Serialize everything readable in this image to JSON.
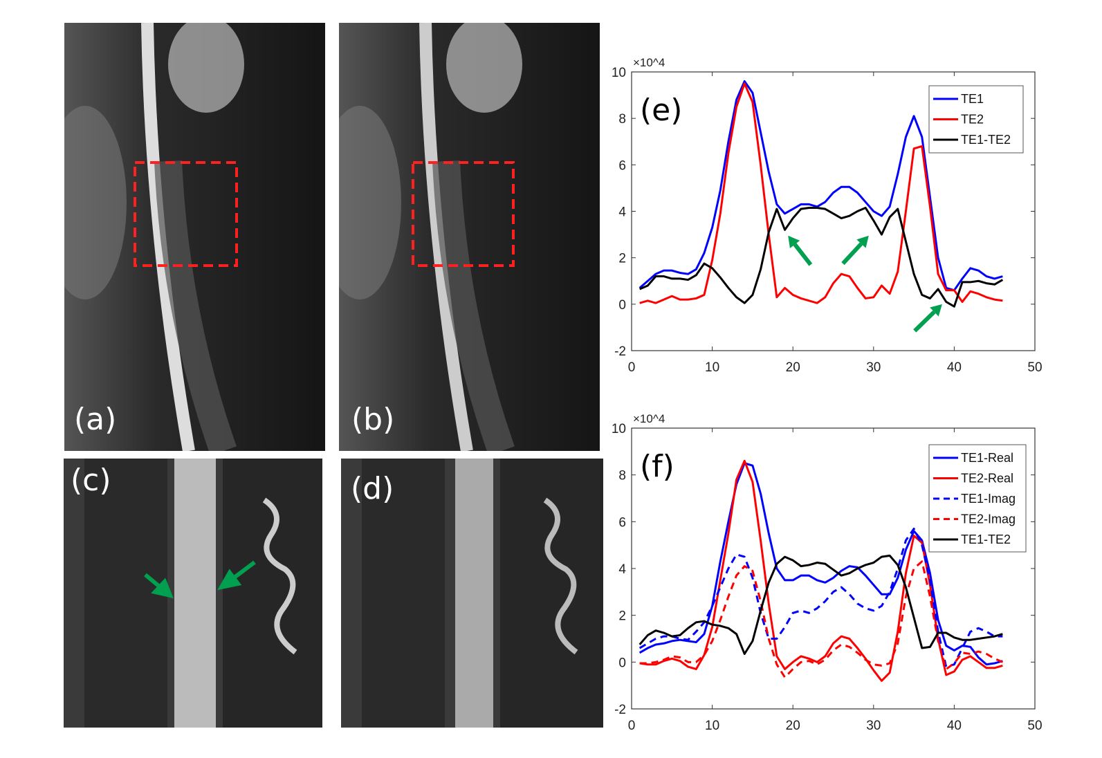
{
  "panels": {
    "a": {
      "label": "(a)"
    },
    "b": {
      "label": "(b)"
    },
    "c": {
      "label": "(c)"
    },
    "d": {
      "label": "(d)"
    }
  },
  "colors": {
    "te1": "#0000ff",
    "te2": "#ff0000",
    "diff": "#000000",
    "arrow": "#00a050",
    "roi_box": "#ff2020"
  },
  "chart_data": [
    {
      "panel_label": "(e)",
      "type": "line",
      "exponent_label": "×10^4",
      "xlim": [
        0,
        50
      ],
      "ylim": [
        -2,
        10
      ],
      "xticks": [
        0,
        10,
        20,
        30,
        40,
        50
      ],
      "yticks": [
        -2,
        0,
        2,
        4,
        6,
        8,
        10
      ],
      "y_scale_factor": 10000,
      "legend_position": "top-right",
      "x": [
        1,
        2,
        3,
        4,
        5,
        6,
        7,
        8,
        9,
        10,
        11,
        12,
        13,
        14,
        15,
        16,
        17,
        18,
        19,
        20,
        21,
        22,
        23,
        24,
        25,
        26,
        27,
        28,
        29,
        30,
        31,
        32,
        33,
        34,
        35,
        36,
        37,
        38,
        39,
        40,
        41,
        42,
        43,
        44,
        45,
        46
      ],
      "series": [
        {
          "name": "TE1",
          "color": "#0000ff",
          "dash": false,
          "values": [
            0.7,
            1.0,
            1.3,
            1.45,
            1.45,
            1.35,
            1.3,
            1.5,
            2.2,
            3.3,
            4.9,
            7.0,
            8.8,
            9.6,
            9.1,
            7.4,
            5.7,
            4.3,
            3.9,
            4.1,
            4.3,
            4.3,
            4.2,
            4.4,
            4.8,
            5.05,
            5.05,
            4.8,
            4.4,
            4.0,
            3.8,
            4.2,
            5.6,
            7.2,
            8.1,
            7.2,
            4.6,
            2.0,
            0.7,
            0.6,
            1.1,
            1.55,
            1.45,
            1.2,
            1.1,
            1.2
          ]
        },
        {
          "name": "TE2",
          "color": "#ff0000",
          "dash": false,
          "values": [
            0.05,
            0.15,
            0.05,
            0.2,
            0.35,
            0.2,
            0.2,
            0.25,
            0.4,
            1.9,
            3.9,
            6.5,
            8.5,
            9.5,
            8.7,
            6.0,
            3.0,
            0.3,
            0.7,
            0.4,
            0.25,
            0.15,
            0.05,
            0.3,
            0.9,
            1.3,
            1.2,
            0.7,
            0.25,
            0.3,
            0.8,
            0.45,
            1.4,
            4.0,
            6.7,
            6.8,
            4.2,
            1.3,
            0.6,
            0.6,
            0.1,
            0.55,
            0.45,
            0.3,
            0.2,
            0.15
          ]
        },
        {
          "name": "TE1-TE2",
          "color": "#000000",
          "dash": false,
          "values": [
            0.65,
            0.8,
            1.2,
            1.2,
            1.1,
            1.1,
            1.05,
            1.25,
            1.75,
            1.55,
            1.15,
            0.7,
            0.3,
            0.05,
            0.4,
            1.5,
            3.1,
            4.1,
            3.2,
            3.7,
            4.1,
            4.15,
            4.15,
            4.1,
            3.9,
            3.7,
            3.8,
            4.0,
            4.15,
            3.6,
            3.0,
            3.75,
            4.1,
            2.7,
            1.3,
            0.4,
            0.25,
            0.65,
            0.1,
            -0.1,
            0.95,
            0.95,
            1.0,
            0.9,
            0.85,
            1.05
          ]
        }
      ],
      "annotations": [
        {
          "type": "arrow",
          "from": [
            22.2,
            1.7
          ],
          "to": [
            19.4,
            2.95
          ]
        },
        {
          "type": "arrow",
          "from": [
            26.2,
            1.75
          ],
          "to": [
            29.4,
            2.95
          ]
        },
        {
          "type": "arrow",
          "from": [
            35.1,
            -1.15
          ],
          "to": [
            38.5,
            0.0
          ]
        }
      ]
    },
    {
      "panel_label": "(f)",
      "type": "line",
      "exponent_label": "×10^4",
      "xlim": [
        0,
        50
      ],
      "ylim": [
        -2,
        10
      ],
      "xticks": [
        0,
        10,
        20,
        30,
        40,
        50
      ],
      "yticks": [
        -2,
        0,
        2,
        4,
        6,
        8,
        10
      ],
      "y_scale_factor": 10000,
      "legend_position": "top-right",
      "x": [
        1,
        2,
        3,
        4,
        5,
        6,
        7,
        8,
        9,
        10,
        11,
        12,
        13,
        14,
        15,
        16,
        17,
        18,
        19,
        20,
        21,
        22,
        23,
        24,
        25,
        26,
        27,
        28,
        29,
        30,
        31,
        32,
        33,
        34,
        35,
        36,
        37,
        38,
        39,
        40,
        41,
        42,
        43,
        44,
        45,
        46
      ],
      "series": [
        {
          "name": "TE1-Real",
          "color": "#0000ff",
          "dash": false,
          "values": [
            0.4,
            0.6,
            0.75,
            0.8,
            0.9,
            0.95,
            0.9,
            0.85,
            1.2,
            2.4,
            4.3,
            6.0,
            7.6,
            8.5,
            8.4,
            7.2,
            5.5,
            4.0,
            3.5,
            3.5,
            3.7,
            3.7,
            3.5,
            3.4,
            3.6,
            3.9,
            4.1,
            4.05,
            3.7,
            3.3,
            2.9,
            2.9,
            3.6,
            4.8,
            5.6,
            5.2,
            3.8,
            1.8,
            0.7,
            0.5,
            0.7,
            0.65,
            0.2,
            -0.1,
            -0.05,
            0.05
          ]
        },
        {
          "name": "TE2-Real",
          "color": "#ff0000",
          "dash": false,
          "values": [
            -0.05,
            -0.1,
            -0.1,
            0.05,
            0.15,
            0.05,
            -0.2,
            -0.3,
            0.3,
            1.5,
            3.5,
            5.5,
            7.8,
            8.6,
            7.7,
            5.2,
            2.5,
            0.25,
            -0.3,
            0.0,
            0.25,
            0.15,
            0.0,
            0.25,
            0.8,
            1.1,
            1.0,
            0.6,
            0.15,
            -0.35,
            -0.8,
            -0.45,
            1.3,
            3.8,
            5.4,
            5.1,
            3.3,
            1.0,
            -0.55,
            -0.4,
            0.1,
            0.25,
            0.0,
            -0.25,
            -0.25,
            -0.15
          ]
        },
        {
          "name": "TE1-Imag",
          "color": "#0000ff",
          "dash": true,
          "values": [
            0.6,
            0.8,
            1.0,
            1.1,
            1.1,
            1.0,
            0.95,
            1.3,
            1.7,
            2.4,
            3.2,
            4.0,
            4.6,
            4.5,
            3.6,
            2.1,
            1.0,
            1.0,
            1.5,
            2.1,
            2.2,
            2.1,
            2.3,
            2.6,
            3.0,
            3.2,
            2.9,
            2.5,
            2.3,
            2.2,
            2.4,
            3.0,
            4.0,
            5.2,
            5.7,
            5.0,
            3.5,
            1.3,
            -0.2,
            -0.1,
            0.6,
            1.3,
            1.45,
            1.3,
            1.1,
            1.1
          ]
        },
        {
          "name": "TE2-Imag",
          "color": "#ff0000",
          "dash": true,
          "values": [
            -0.05,
            -0.05,
            0.0,
            0.1,
            0.25,
            0.2,
            0.0,
            0.0,
            0.3,
            0.9,
            1.8,
            2.8,
            3.7,
            4.1,
            3.9,
            2.6,
            1.0,
            -0.1,
            -0.65,
            -0.3,
            0.0,
            0.05,
            -0.1,
            0.1,
            0.5,
            0.75,
            0.65,
            0.4,
            0.1,
            -0.1,
            -0.15,
            -0.05,
            0.8,
            2.8,
            4.0,
            4.3,
            2.8,
            0.9,
            -0.3,
            -0.05,
            0.4,
            0.35,
            0.45,
            0.35,
            0.15,
            0.0
          ]
        },
        {
          "name": "TE1-TE2",
          "color": "#000000",
          "dash": false,
          "values": [
            0.75,
            1.15,
            1.35,
            1.25,
            1.1,
            1.15,
            1.45,
            1.7,
            1.75,
            1.6,
            1.55,
            1.45,
            1.2,
            0.35,
            0.9,
            2.2,
            3.4,
            4.2,
            4.5,
            4.35,
            4.1,
            4.15,
            4.25,
            4.2,
            3.95,
            3.7,
            3.8,
            4.0,
            4.15,
            4.25,
            4.5,
            4.55,
            4.15,
            3.2,
            1.9,
            0.6,
            0.65,
            1.25,
            1.25,
            1.05,
            0.95,
            0.95,
            1.0,
            1.05,
            1.1,
            1.2
          ]
        }
      ]
    }
  ]
}
